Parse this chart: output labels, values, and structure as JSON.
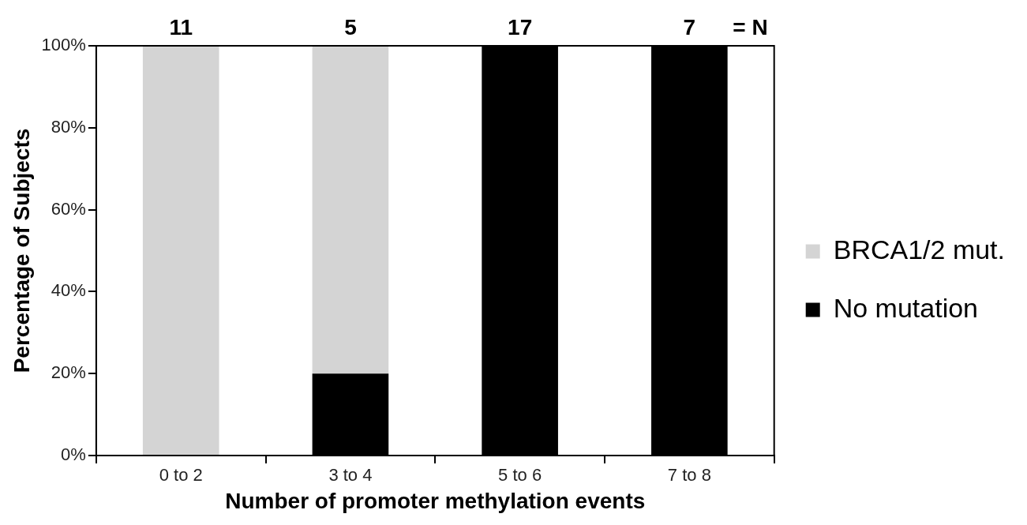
{
  "chart_data": {
    "type": "bar",
    "stacked": true,
    "xlabel": "Number of promoter methylation events",
    "ylabel": "Percentage of Subjects",
    "categories": [
      "0 to 2",
      "3 to 4",
      "5 to 6",
      "7 to 8"
    ],
    "series": [
      {
        "name": "No mutation",
        "color": "#000000",
        "values": [
          0,
          20,
          100,
          100
        ]
      },
      {
        "name": "BRCA1/2 mut.",
        "color": "#d4d4d4",
        "values": [
          100,
          80,
          0,
          0
        ]
      }
    ],
    "ylim": [
      0,
      100
    ],
    "yticks": [
      {
        "value": 0,
        "label": "0%"
      },
      {
        "value": 20,
        "label": "20%"
      },
      {
        "value": 40,
        "label": "40%"
      },
      {
        "value": 60,
        "label": "60%"
      },
      {
        "value": 80,
        "label": "80%"
      },
      {
        "value": 100,
        "label": "100%"
      }
    ],
    "annotations": [
      {
        "text": "11",
        "x": "0 to 2",
        "y": 100
      },
      {
        "text": "5",
        "x": "3 to 4",
        "y": 100
      },
      {
        "text": "17",
        "x": "5 to 6",
        "y": 100
      },
      {
        "text": "7",
        "x": "7 to 8",
        "y": 100
      },
      "= N"
    ],
    "grid": false,
    "legend": "right"
  }
}
